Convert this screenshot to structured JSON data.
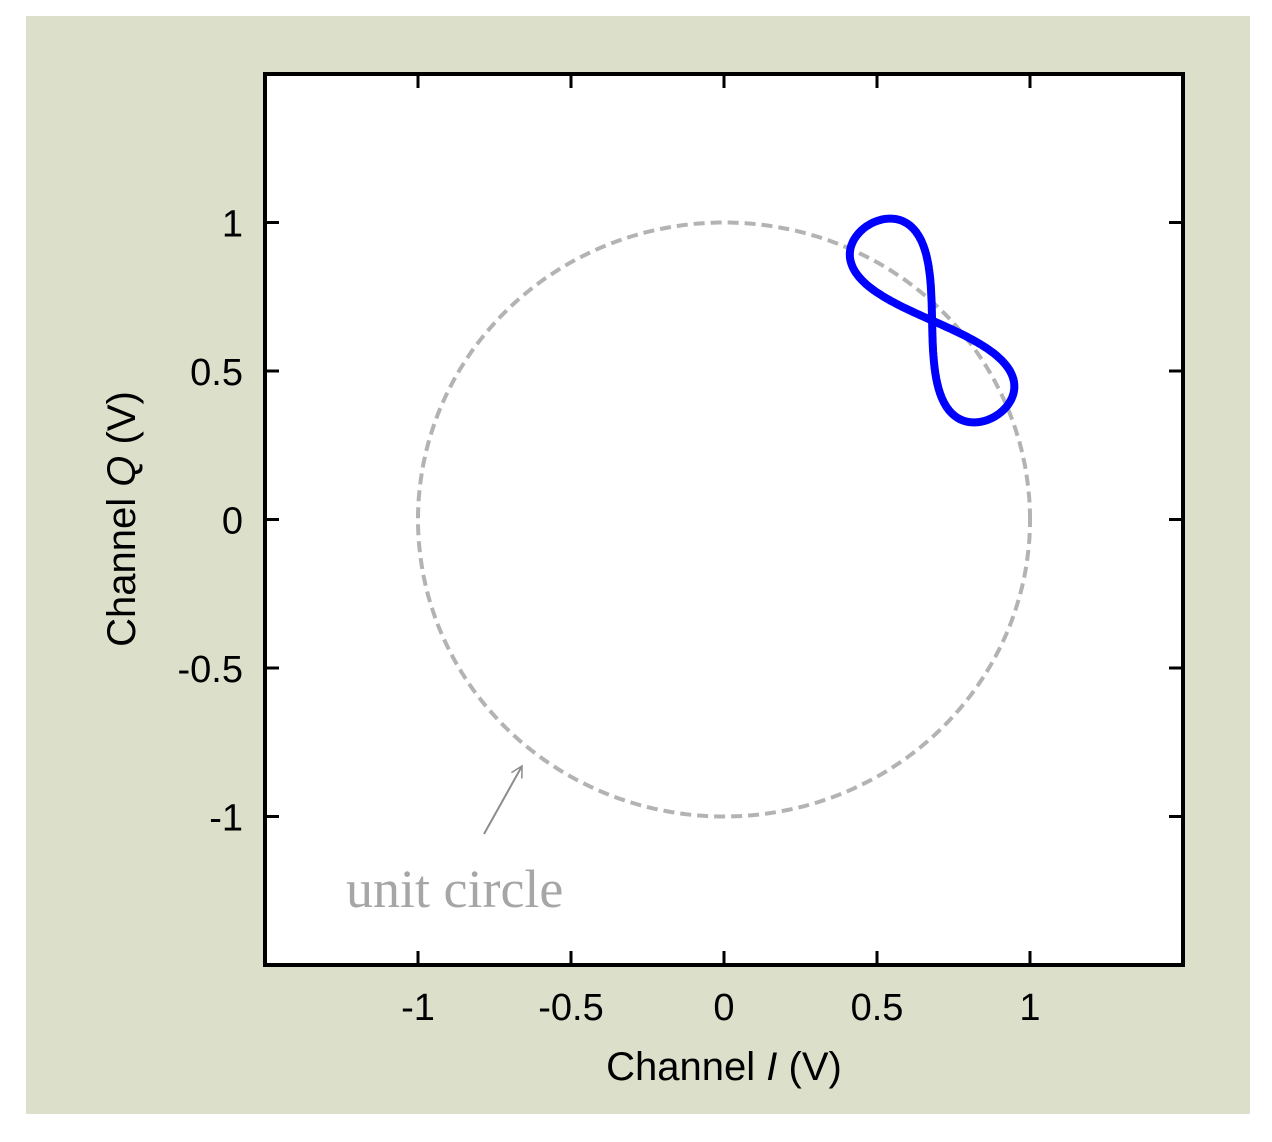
{
  "chart_data": {
    "type": "line",
    "title": "",
    "xlabel": {
      "prefix": "Channel ",
      "var": "I",
      "suffix": " (V)"
    },
    "ylabel": {
      "prefix": "Channel ",
      "var": "Q",
      "suffix": " (V)"
    },
    "xlim": [
      -1.5,
      1.5
    ],
    "ylim": [
      -1.5,
      1.5
    ],
    "xticks": [
      -1,
      -0.5,
      0,
      0.5,
      1
    ],
    "yticks": [
      -1,
      -0.5,
      0,
      0.5,
      1
    ],
    "xtick_labels": [
      "-1",
      "-0.5",
      "0",
      "0.5",
      "1"
    ],
    "ytick_labels": [
      "-1",
      "-0.5",
      "0",
      "0.5",
      "1"
    ],
    "grid": false,
    "series": [
      {
        "style": "dashed",
        "color": "#b3b3b3",
        "shape": "circle",
        "center": [
          0,
          0
        ],
        "radius": 1
      },
      {
        "style": "solid",
        "color": "#0000ff",
        "shape": "figure-eight",
        "center": [
          0.68,
          0.67
        ],
        "lobe_tips": [
          [
            0.47,
            0.99
          ],
          [
            0.89,
            0.32
          ]
        ],
        "extent_x": [
          0.34,
          1.01
        ],
        "extent_y": [
          0.32,
          0.99
        ]
      }
    ],
    "annotations": [
      {
        "text": "unit circle",
        "points_to": [
          -0.66,
          -0.83
        ]
      }
    ],
    "colors": {
      "figure_background": "#dcdfca",
      "axes_background": "#ffffff"
    }
  }
}
